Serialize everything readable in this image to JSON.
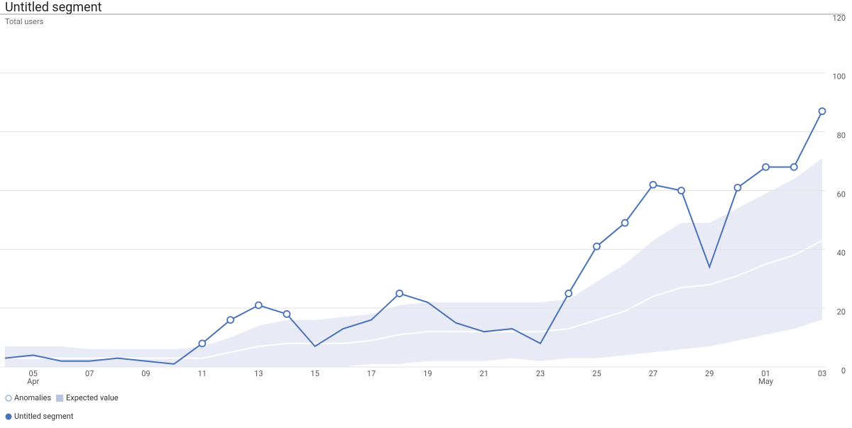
{
  "chart_data": {
    "type": "anomaly_line",
    "title": "Untitled segment",
    "subtitle": "Total users",
    "categories": [
      null,
      "05",
      null,
      "07",
      null,
      "09",
      null,
      "11",
      null,
      "13",
      null,
      "15",
      null,
      "17",
      null,
      "19",
      null,
      "21",
      null,
      "23",
      null,
      "25",
      null,
      "27",
      null,
      "29",
      null,
      "01",
      null,
      "03"
    ],
    "months": [
      null,
      "Apr",
      null,
      null,
      null,
      null,
      null,
      null,
      null,
      null,
      null,
      null,
      null,
      null,
      null,
      null,
      null,
      null,
      null,
      null,
      null,
      null,
      null,
      null,
      null,
      null,
      null,
      "May",
      null,
      null
    ],
    "series": [
      {
        "name": "Untitled segment",
        "color": "#4a72b9",
        "values": [
          3,
          4,
          2,
          2,
          3,
          2,
          1,
          8,
          16,
          21,
          18,
          7,
          13,
          16,
          25,
          22,
          15,
          12,
          13,
          8,
          25,
          41,
          49,
          62,
          60,
          34,
          61,
          68,
          68,
          87
        ]
      },
      {
        "name": "Anomalies",
        "color": "#4a72b9",
        "values": [
          null,
          null,
          null,
          null,
          null,
          null,
          null,
          8,
          16,
          21,
          18,
          null,
          null,
          null,
          25,
          null,
          null,
          null,
          null,
          null,
          25,
          41,
          49,
          62,
          60,
          null,
          61,
          68,
          68,
          87
        ]
      }
    ],
    "expected": {
      "name": "Expected value",
      "color": "#ffffff",
      "band_color": "#e8eaf6",
      "values": [
        3,
        3,
        3,
        3,
        3,
        3,
        3,
        3,
        5,
        7,
        8,
        8,
        8,
        9,
        11,
        12,
        12,
        12,
        12,
        12,
        13,
        16,
        19,
        24,
        27,
        28,
        31,
        35,
        38,
        43
      ],
      "upper": [
        7,
        7,
        7,
        6,
        6,
        6,
        6,
        7,
        10,
        14,
        16,
        16,
        17,
        18,
        21,
        22,
        22,
        22,
        22,
        22,
        23,
        29,
        35,
        43,
        49,
        49,
        54,
        59,
        64,
        71
      ],
      "lower": [
        0,
        0,
        0,
        0,
        0,
        0,
        0,
        0,
        0,
        0,
        0,
        0,
        0,
        1,
        1,
        2,
        2,
        2,
        3,
        2,
        3,
        3,
        4,
        5,
        6,
        7,
        9,
        11,
        13,
        16
      ]
    },
    "ylim": [
      0,
      120
    ],
    "yticks": [
      0,
      20,
      40,
      60,
      80,
      100,
      120
    ],
    "grid": true
  }
}
